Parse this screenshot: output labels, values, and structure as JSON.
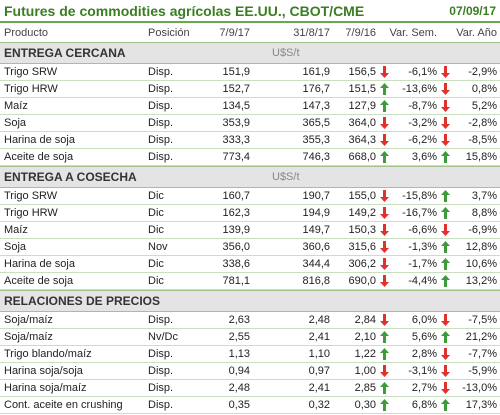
{
  "header": {
    "title": "Futures de commodities agrícolas EE.UU., CBOT/CME",
    "date": "07/09/17"
  },
  "columns": [
    "Producto",
    "Posición",
    "7/9/17",
    "31/8/17",
    "7/9/16",
    "Var. Sem.",
    "Var. Año"
  ],
  "sections": [
    {
      "title": "ENTREGA CERCANA",
      "unit": "U$S/t",
      "rows": [
        [
          "Trigo SRW",
          "Disp.",
          "151,9",
          "161,9",
          "156,5",
          "-6,1%",
          "-2,9%"
        ],
        [
          "Trigo HRW",
          "Disp.",
          "152,7",
          "176,7",
          "151,5",
          "-13,6%",
          "0,8%"
        ],
        [
          "Maíz",
          "Disp.",
          "134,5",
          "147,3",
          "127,9",
          "-8,7%",
          "5,2%"
        ],
        [
          "Soja",
          "Disp.",
          "353,9",
          "365,5",
          "364,0",
          "-3,2%",
          "-2,8%"
        ],
        [
          "Harina de soja",
          "Disp.",
          "333,3",
          "355,3",
          "364,3",
          "-6,2%",
          "-8,5%"
        ],
        [
          "Aceite de soja",
          "Disp.",
          "773,4",
          "746,3",
          "668,0",
          "3,6%",
          "15,8%"
        ]
      ]
    },
    {
      "title": "ENTREGA A COSECHA",
      "unit": "U$S/t",
      "rows": [
        [
          "Trigo SRW",
          "Dic",
          "160,7",
          "190,7",
          "155,0",
          "-15,8%",
          "3,7%"
        ],
        [
          "Trigo HRW",
          "Dic",
          "162,3",
          "194,9",
          "149,2",
          "-16,7%",
          "8,8%"
        ],
        [
          "Maíz",
          "Dic",
          "139,9",
          "149,7",
          "150,3",
          "-6,6%",
          "-6,9%"
        ],
        [
          "Soja",
          "Nov",
          "356,0",
          "360,6",
          "315,6",
          "-1,3%",
          "12,8%"
        ],
        [
          "Harina de soja",
          "Dic",
          "338,6",
          "344,4",
          "306,2",
          "-1,7%",
          "10,6%"
        ],
        [
          "Aceite de soja",
          "Dic",
          "781,1",
          "816,8",
          "690,0",
          "-4,4%",
          "13,2%"
        ]
      ]
    },
    {
      "title": "RELACIONES DE PRECIOS",
      "rows": [
        [
          "Soja/maíz",
          "Disp.",
          "2,63",
          "2,48",
          "2,84",
          "6,0%",
          "-7,5%"
        ],
        [
          "Soja/maíz",
          "Nv/Dc",
          "2,55",
          "2,41",
          "2,10",
          "5,6%",
          "21,2%"
        ],
        [
          "Trigo blando/maíz",
          "Disp.",
          "1,13",
          "1,10",
          "1,22",
          "2,8%",
          "-7,7%"
        ],
        [
          "Harina soja/soja",
          "Disp.",
          "0,94",
          "0,97",
          "1,00",
          "-3,1%",
          "-5,9%"
        ],
        [
          "Harina soja/maíz",
          "Disp.",
          "2,48",
          "2,41",
          "2,85",
          "2,7%",
          "-13,0%"
        ],
        [
          "Cont. aceite en crushing",
          "Disp.",
          "0,35",
          "0,32",
          "0,30",
          "6,8%",
          "17,3%"
        ]
      ]
    }
  ]
}
